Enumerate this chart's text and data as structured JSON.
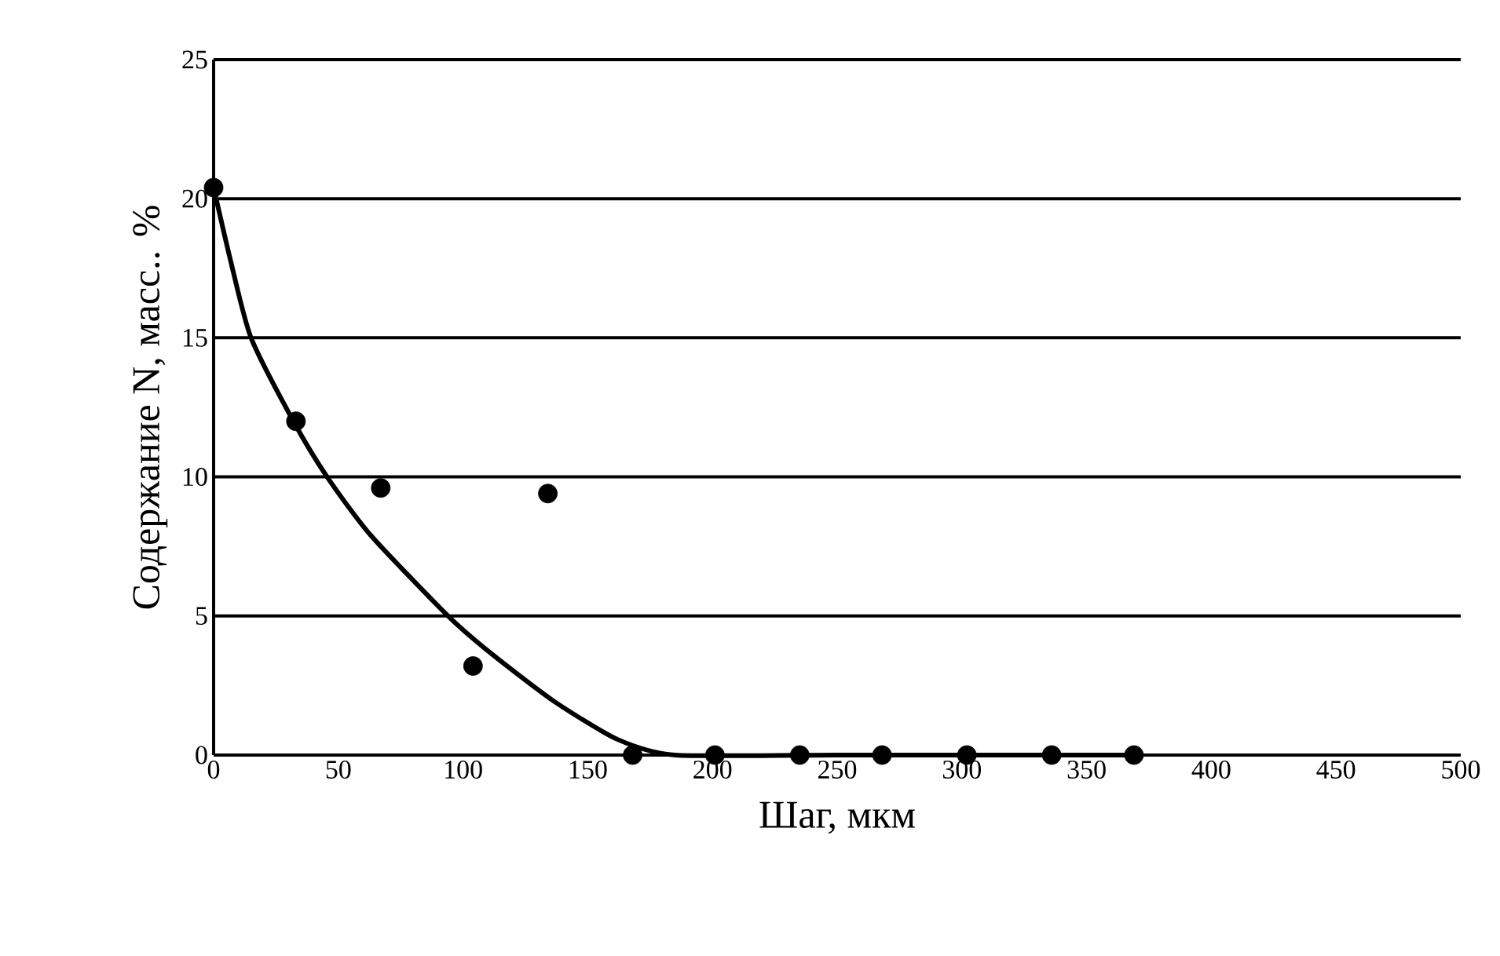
{
  "chart_data": {
    "type": "scatter",
    "xlabel": "Шаг, мкм",
    "ylabel": "Содержание N, масс.. %",
    "xlim": [
      0,
      500
    ],
    "ylim": [
      0,
      25
    ],
    "xticks": [
      0,
      50,
      100,
      150,
      200,
      250,
      300,
      350,
      400,
      450,
      500
    ],
    "yticks": [
      0,
      5,
      10,
      15,
      20,
      25
    ],
    "grid": "y",
    "series": [
      {
        "color": "#000000",
        "marker": "circle",
        "x": [
          0,
          33,
          67,
          104,
          134,
          168,
          201,
          235,
          268,
          302,
          336,
          369
        ],
        "values": [
          20.4,
          12.0,
          9.6,
          3.2,
          9.4,
          0,
          0,
          0,
          0,
          0,
          0,
          0
        ]
      },
      {
        "type": "line",
        "color": "#000000",
        "marker": "none",
        "line_style": "solid",
        "x": [
          0,
          7,
          15,
          32,
          45.5,
          63,
          94,
          112,
          137,
          162,
          185,
          250,
          372
        ],
        "values": [
          20.4,
          17.7,
          15,
          12.0,
          10,
          7.9,
          5,
          3.6,
          1.9,
          0.56,
          0,
          0,
          0
        ]
      }
    ]
  }
}
